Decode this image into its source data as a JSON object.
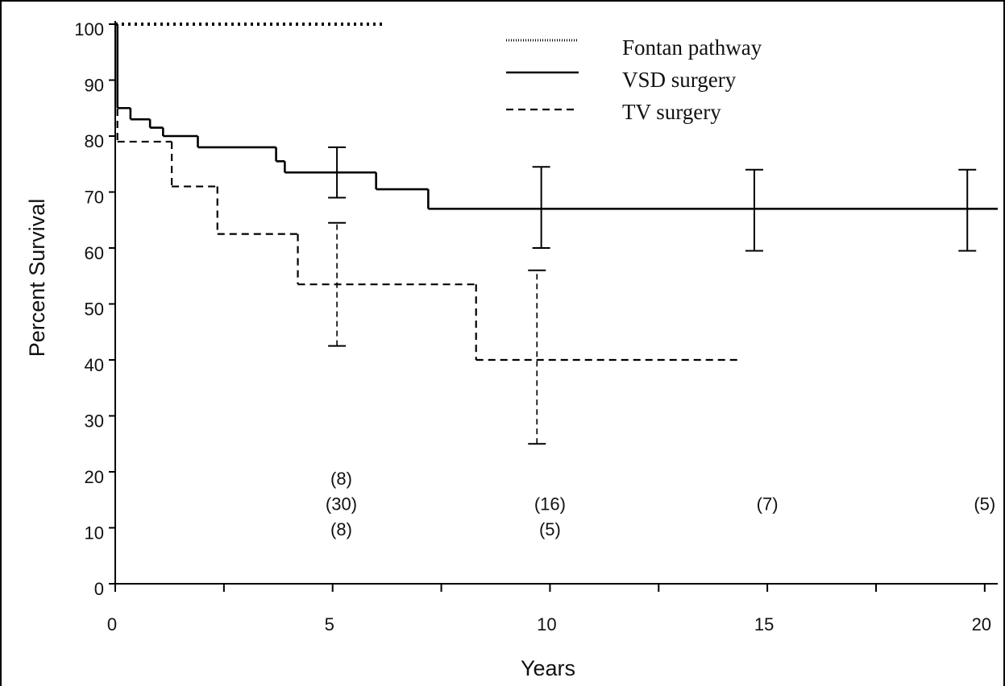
{
  "chart_data": {
    "type": "step",
    "ylabel": "Percent Survival",
    "xlabel": "Years",
    "xlim": [
      0,
      20.3
    ],
    "ylim": [
      0,
      100
    ],
    "xticks": [
      0,
      5,
      10,
      15,
      20
    ],
    "xminor": [
      2.5,
      7.5,
      12.5,
      17.5
    ],
    "yticks": [
      0,
      10,
      20,
      30,
      40,
      50,
      60,
      70,
      80,
      90,
      100
    ],
    "legend": "top-right",
    "series": [
      {
        "name": "Fontan pathway",
        "color": "#000000",
        "dash": "dotted",
        "x": [
          0
        ],
        "values": [
          100
        ],
        "x_end": 6.2
      },
      {
        "name": "VSD surgery",
        "color": "#000000",
        "dash": "solid",
        "x": [
          0,
          0.05,
          0.35,
          0.8,
          1.1,
          1.9,
          3.7,
          3.9,
          6.0,
          7.2
        ],
        "values": [
          100,
          85,
          83,
          81.5,
          80,
          78,
          75.5,
          73.5,
          70.5,
          67
        ],
        "x_end": 20.3,
        "ci_x": [
          5.1,
          9.8,
          14.7,
          19.6
        ],
        "ci_low": [
          69,
          60,
          59.5,
          59.5
        ],
        "ci_high": [
          78,
          74.5,
          74,
          74
        ]
      },
      {
        "name": "TV surgery",
        "color": "#000000",
        "dash": "dashed",
        "x": [
          0,
          0.05,
          1.3,
          2.35,
          4.2,
          8.3
        ],
        "values": [
          100,
          79,
          71,
          62.5,
          53.5,
          40
        ],
        "x_end": 14.4,
        "ci_x": [
          5.1,
          9.7
        ],
        "ci_low": [
          42.5,
          25
        ],
        "ci_high": [
          64.5,
          56
        ]
      }
    ],
    "annotations": [
      {
        "text": "(8)",
        "x": 5.2,
        "y": 18.5
      },
      {
        "text": "(30)",
        "x": 5.2,
        "y": 14
      },
      {
        "text": "(8)",
        "x": 5.2,
        "y": 9.5
      },
      {
        "text": "(16)",
        "x": 10,
        "y": 14
      },
      {
        "text": "(5)",
        "x": 10,
        "y": 9.5
      },
      {
        "text": "(7)",
        "x": 15,
        "y": 14
      },
      {
        "text": "(5)",
        "x": 20,
        "y": 14
      }
    ]
  }
}
